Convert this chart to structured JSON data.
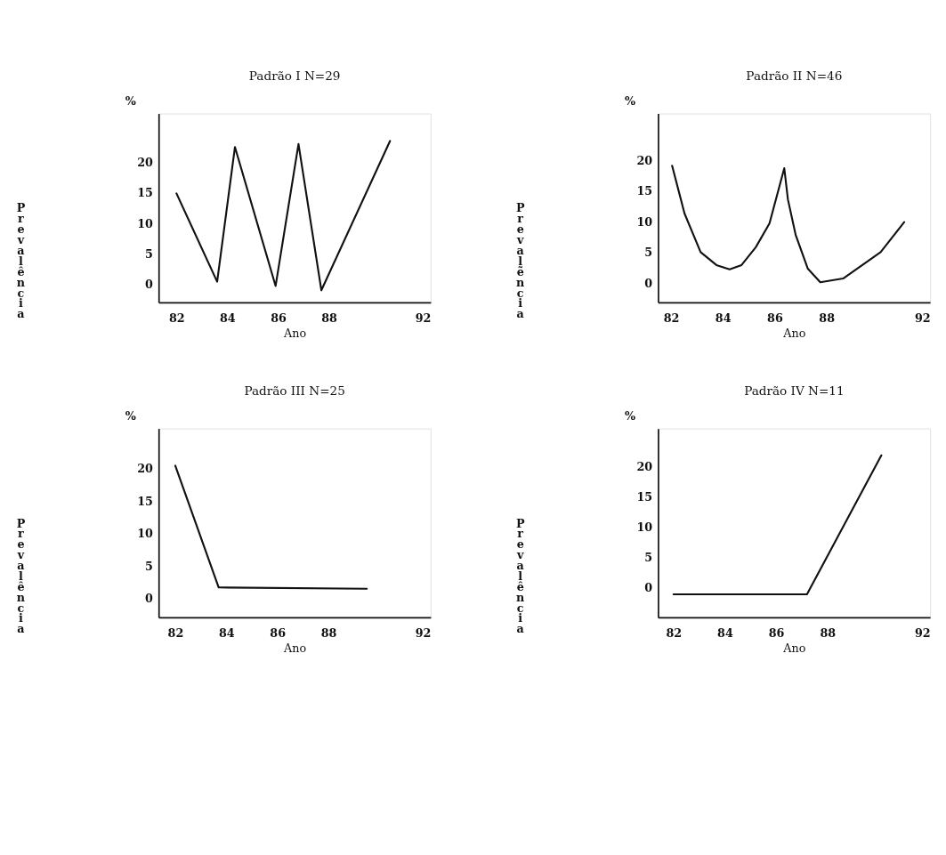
{
  "chart_data": [
    {
      "type": "line",
      "title": "Padrão I N=29",
      "xlabel": "Ano",
      "ylabel": "Prevalência",
      "annotations": [
        "%"
      ],
      "xlim": [
        81.3,
        92
      ],
      "xticks": [
        82,
        84,
        86,
        88,
        92
      ],
      "ylim": [
        -3,
        28
      ],
      "yticks": [
        0,
        5,
        10,
        15,
        20
      ],
      "grid": false,
      "x": [
        82.0,
        83.6,
        84.3,
        85.9,
        86.8,
        87.7,
        90.4
      ],
      "series": [
        {
          "color": "#111111",
          "values": [
            14.9,
            0.4,
            22.5,
            -0.3,
            23.0,
            -1.0,
            23.5
          ]
        }
      ]
    },
    {
      "type": "line",
      "title": "Padrão II N=46",
      "xlabel": "Ano",
      "ylabel": "Prevalẽncia",
      "annotations": [
        "%"
      ],
      "xlim": [
        81.5,
        92
      ],
      "xticks": [
        82,
        84,
        86,
        88,
        92
      ],
      "ylim": [
        -3.2,
        27.6
      ],
      "yticks": [
        0,
        5,
        10,
        15,
        20
      ],
      "grid": false,
      "x": [
        82.04,
        82.52,
        83.14,
        83.75,
        84.26,
        84.72,
        85.27,
        85.8,
        86.37,
        86.51,
        86.81,
        87.28,
        87.76,
        88.64,
        90.09,
        91.0
      ],
      "series": [
        {
          "color": "#111111",
          "values": [
            19.1,
            11.3,
            5.0,
            2.9,
            2.2,
            2.9,
            5.8,
            9.7,
            18.7,
            13.6,
            7.8,
            2.3,
            0.1,
            0.7,
            5.0,
            9.9
          ]
        }
      ]
    },
    {
      "type": "line",
      "title": "Padrão III N=25",
      "xlabel": "Ano",
      "ylabel": "Prevalência",
      "annotations": [
        "%"
      ],
      "xlim": [
        81.35,
        92
      ],
      "xticks": [
        82,
        84,
        86,
        88,
        92
      ],
      "ylim": [
        -2.9,
        26.1
      ],
      "yticks": [
        0,
        5,
        10,
        15,
        20
      ],
      "grid": false,
      "x": [
        82.0,
        83.7,
        89.5
      ],
      "series": [
        {
          "color": "#111111",
          "values": [
            20.4,
            1.7,
            1.5
          ]
        }
      ]
    },
    {
      "type": "line",
      "title": "Padrão IV N=11",
      "xlabel": "Ano",
      "ylabel": "Prevalência",
      "annotations": [
        "%"
      ],
      "xlim": [
        81.4,
        92
      ],
      "xticks": [
        82,
        84,
        86,
        88,
        92
      ],
      "ylim": [
        -4.9,
        26.2
      ],
      "yticks": [
        0,
        5,
        10,
        15,
        20
      ],
      "grid": false,
      "x": [
        82.0,
        87.2,
        90.1
      ],
      "series": [
        {
          "color": "#111111",
          "values": [
            -1.1,
            -1.1,
            21.8
          ]
        }
      ]
    }
  ]
}
